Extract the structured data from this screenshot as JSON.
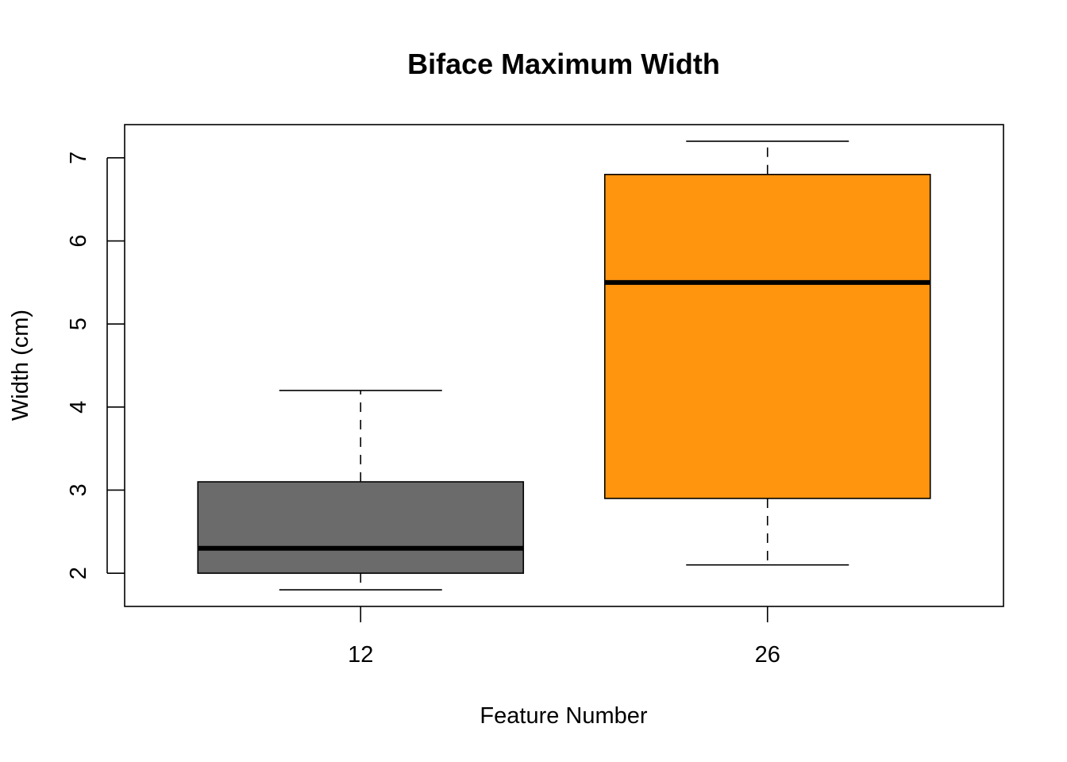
{
  "chart_data": {
    "type": "boxplot",
    "title": "Biface Maximum Width",
    "xlabel": "Feature Number",
    "ylabel": "Width (cm)",
    "categories": [
      "12",
      "26"
    ],
    "ylim": [
      1.6,
      7.4
    ],
    "yticks": [
      2,
      3,
      4,
      5,
      6,
      7
    ],
    "ytick_labels": [
      "2",
      "3",
      "4",
      "5",
      "6",
      "7"
    ],
    "boxes": [
      {
        "category": "12",
        "min": 1.8,
        "q1": 2.0,
        "median": 2.3,
        "q3": 3.1,
        "max": 4.2,
        "color": "#6b6b6b"
      },
      {
        "category": "26",
        "min": 2.1,
        "q1": 2.9,
        "median": 5.5,
        "q3": 6.8,
        "max": 7.2,
        "color": "#ff940f"
      }
    ],
    "grid": false,
    "legend": "none"
  }
}
